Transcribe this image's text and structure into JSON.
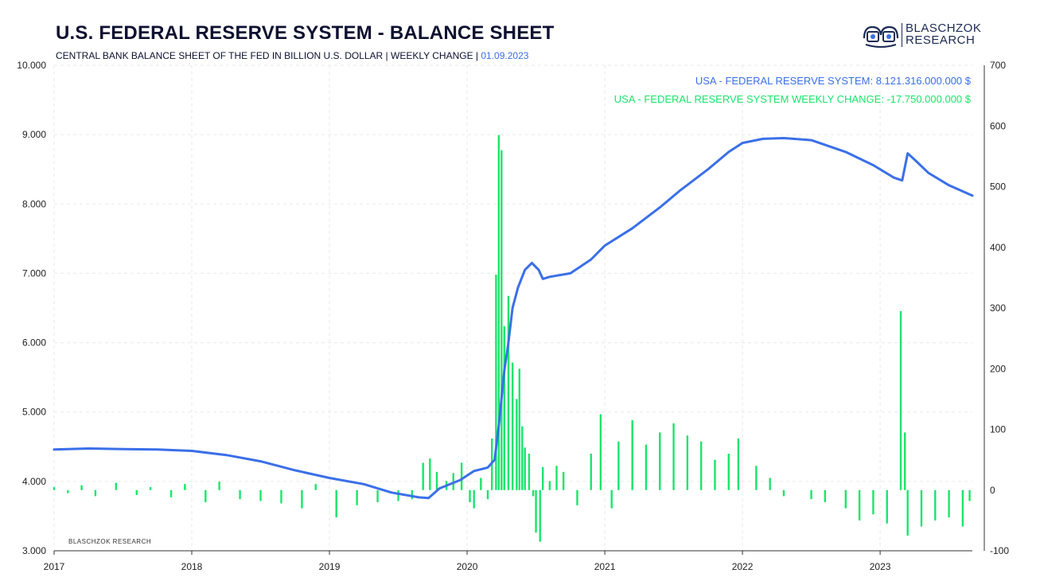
{
  "header": {
    "title": "U.S. FEDERAL RESERVE SYSTEM - BALANCE SHEET",
    "subtitle": "CENTRAL BANK BALANCE SHEET OF THE FED IN BILLION U.S. DOLLAR | WEEKLY CHANGE | ",
    "date": "01.09.2023",
    "logo_line1": "BLASCHZOK",
    "logo_line2": "RESEARCH"
  },
  "colors": {
    "balance": "#3a6fe8",
    "change": "#19e56b",
    "navy": "#0d1030"
  },
  "chart_data": {
    "type": "line",
    "title": "U.S. FEDERAL RESERVE SYSTEM - BALANCE SHEET",
    "legend": [
      "USA - FEDERAL RESERVE SYSTEM: 8.121.316.000.000 $",
      "USA - FEDERAL RESERVE SYSTEM WEEKLY CHANGE: -17.750.000.000 $"
    ],
    "legend_position": "top-right",
    "watermark": "BLASCHZOK  RESEARCH",
    "x_ticks": [
      "2017",
      "2018",
      "2019",
      "2020",
      "2021",
      "2022",
      "2023"
    ],
    "xlim": [
      2017.0,
      2023.67
    ],
    "y_left": {
      "ticks": [
        "3.000",
        "4.000",
        "5.000",
        "6.000",
        "7.000",
        "8.000",
        "9.000",
        "10.000"
      ],
      "range": [
        3000,
        10000
      ]
    },
    "y_right": {
      "ticks": [
        "-100",
        "0",
        "100",
        "200",
        "300",
        "400",
        "500",
        "600",
        "700"
      ],
      "range": [
        -100,
        700
      ]
    },
    "grid": true,
    "balance_series": {
      "name": "USA - FEDERAL RESERVE SYSTEM",
      "axis": "left",
      "points": [
        [
          2017.0,
          4460
        ],
        [
          2017.25,
          4475
        ],
        [
          2017.5,
          4465
        ],
        [
          2017.75,
          4460
        ],
        [
          2018.0,
          4440
        ],
        [
          2018.25,
          4380
        ],
        [
          2018.5,
          4290
        ],
        [
          2018.75,
          4160
        ],
        [
          2019.0,
          4050
        ],
        [
          2019.25,
          3960
        ],
        [
          2019.45,
          3840
        ],
        [
          2019.65,
          3770
        ],
        [
          2019.72,
          3760
        ],
        [
          2019.8,
          3900
        ],
        [
          2019.95,
          4020
        ],
        [
          2020.05,
          4150
        ],
        [
          2020.15,
          4200
        ],
        [
          2020.2,
          4310
        ],
        [
          2020.23,
          4800
        ],
        [
          2020.27,
          5600
        ],
        [
          2020.3,
          6000
        ],
        [
          2020.33,
          6500
        ],
        [
          2020.37,
          6800
        ],
        [
          2020.42,
          7050
        ],
        [
          2020.47,
          7150
        ],
        [
          2020.52,
          7050
        ],
        [
          2020.55,
          6920
        ],
        [
          2020.6,
          6950
        ],
        [
          2020.75,
          7000
        ],
        [
          2020.9,
          7200
        ],
        [
          2021.0,
          7400
        ],
        [
          2021.2,
          7650
        ],
        [
          2021.4,
          7950
        ],
        [
          2021.55,
          8200
        ],
        [
          2021.75,
          8500
        ],
        [
          2021.9,
          8750
        ],
        [
          2022.0,
          8880
        ],
        [
          2022.15,
          8940
        ],
        [
          2022.3,
          8950
        ],
        [
          2022.5,
          8920
        ],
        [
          2022.75,
          8750
        ],
        [
          2022.95,
          8560
        ],
        [
          2023.1,
          8380
        ],
        [
          2023.16,
          8340
        ],
        [
          2023.2,
          8730
        ],
        [
          2023.25,
          8640
        ],
        [
          2023.35,
          8450
        ],
        [
          2023.5,
          8270
        ],
        [
          2023.67,
          8121
        ]
      ]
    },
    "weekly_change_series": {
      "name": "USA - FEDERAL RESERVE SYSTEM WEEKLY CHANGE",
      "axis": "right",
      "type": "bar",
      "points": [
        [
          2017.0,
          5
        ],
        [
          2017.1,
          -5
        ],
        [
          2017.2,
          8
        ],
        [
          2017.3,
          -10
        ],
        [
          2017.45,
          12
        ],
        [
          2017.6,
          -8
        ],
        [
          2017.7,
          5
        ],
        [
          2017.85,
          -12
        ],
        [
          2017.95,
          10
        ],
        [
          2018.1,
          -20
        ],
        [
          2018.2,
          14
        ],
        [
          2018.35,
          -15
        ],
        [
          2018.5,
          -18
        ],
        [
          2018.65,
          -22
        ],
        [
          2018.8,
          -30
        ],
        [
          2018.9,
          10
        ],
        [
          2019.05,
          -45
        ],
        [
          2019.2,
          -25
        ],
        [
          2019.35,
          -20
        ],
        [
          2019.5,
          -18
        ],
        [
          2019.6,
          -15
        ],
        [
          2019.68,
          45
        ],
        [
          2019.73,
          52
        ],
        [
          2019.78,
          30
        ],
        [
          2019.85,
          15
        ],
        [
          2019.9,
          28
        ],
        [
          2019.96,
          45
        ],
        [
          2020.02,
          -20
        ],
        [
          2020.05,
          -30
        ],
        [
          2020.1,
          20
        ],
        [
          2020.15,
          -15
        ],
        [
          2020.18,
          85
        ],
        [
          2020.21,
          355
        ],
        [
          2020.23,
          585
        ],
        [
          2020.25,
          560
        ],
        [
          2020.27,
          270
        ],
        [
          2020.3,
          320
        ],
        [
          2020.33,
          210
        ],
        [
          2020.36,
          150
        ],
        [
          2020.38,
          200
        ],
        [
          2020.4,
          105
        ],
        [
          2020.42,
          70
        ],
        [
          2020.45,
          60
        ],
        [
          2020.48,
          -10
        ],
        [
          2020.5,
          -70
        ],
        [
          2020.53,
          -85
        ],
        [
          2020.55,
          38
        ],
        [
          2020.6,
          15
        ],
        [
          2020.65,
          40
        ],
        [
          2020.7,
          30
        ],
        [
          2020.8,
          -25
        ],
        [
          2020.9,
          60
        ],
        [
          2020.97,
          125
        ],
        [
          2021.05,
          -30
        ],
        [
          2021.1,
          80
        ],
        [
          2021.2,
          115
        ],
        [
          2021.3,
          75
        ],
        [
          2021.4,
          95
        ],
        [
          2021.5,
          110
        ],
        [
          2021.6,
          90
        ],
        [
          2021.7,
          80
        ],
        [
          2021.8,
          50
        ],
        [
          2021.9,
          60
        ],
        [
          2021.97,
          85
        ],
        [
          2022.1,
          40
        ],
        [
          2022.2,
          20
        ],
        [
          2022.3,
          -10
        ],
        [
          2022.5,
          -15
        ],
        [
          2022.6,
          -20
        ],
        [
          2022.75,
          -30
        ],
        [
          2022.85,
          -50
        ],
        [
          2022.95,
          -40
        ],
        [
          2023.05,
          -55
        ],
        [
          2023.15,
          295
        ],
        [
          2023.18,
          95
        ],
        [
          2023.2,
          -75
        ],
        [
          2023.3,
          -60
        ],
        [
          2023.4,
          -50
        ],
        [
          2023.5,
          -45
        ],
        [
          2023.6,
          -60
        ],
        [
          2023.65,
          -18
        ]
      ]
    }
  }
}
